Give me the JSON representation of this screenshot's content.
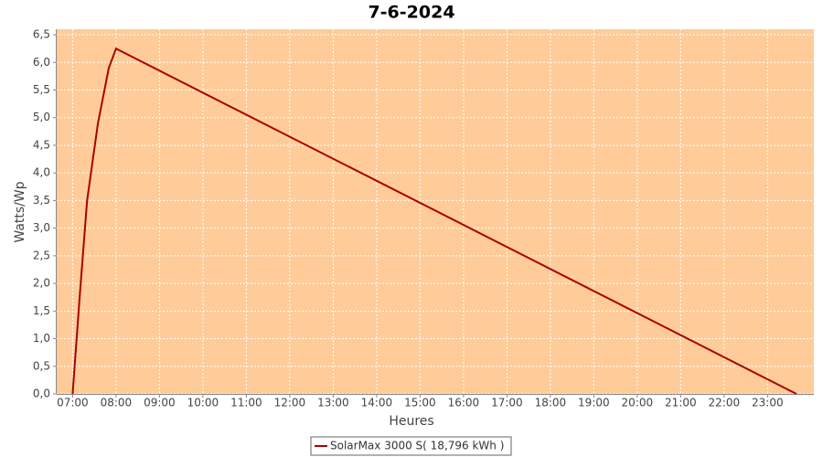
{
  "chart_data": {
    "type": "line",
    "title": "7-6-2024",
    "x_label": "Heures",
    "y_label": "Watts/Wp",
    "x": [
      "07:00",
      "07:10",
      "07:20",
      "07:35",
      "07:50",
      "08:00",
      "23:40"
    ],
    "series": [
      {
        "name": "SolarMax 3000 S( 18,796 kWh )",
        "color": "#aa0000",
        "values": [
          0,
          1.8,
          3.5,
          4.9,
          5.9,
          6.25,
          0
        ]
      }
    ],
    "xlim": [
      "06:38",
      "24:04"
    ],
    "xticks": [
      "07:00",
      "08:00",
      "09:00",
      "10:00",
      "11:00",
      "12:00",
      "13:00",
      "14:00",
      "15:00",
      "16:00",
      "17:00",
      "18:00",
      "19:00",
      "20:00",
      "21:00",
      "22:00",
      "23:00"
    ],
    "ylim": [
      0,
      6.6
    ],
    "yticks": [
      {
        "value": 0,
        "label": "0,0"
      },
      {
        "value": 0.5,
        "label": "0,5"
      },
      {
        "value": 1,
        "label": "1,0"
      },
      {
        "value": 1.5,
        "label": "1,5"
      },
      {
        "value": 2,
        "label": "2,0"
      },
      {
        "value": 2.5,
        "label": "2,5"
      },
      {
        "value": 3,
        "label": "3,0"
      },
      {
        "value": 3.5,
        "label": "3,5"
      },
      {
        "value": 4,
        "label": "4,0"
      },
      {
        "value": 4.5,
        "label": "4,5"
      },
      {
        "value": 5,
        "label": "5,0"
      },
      {
        "value": 5.5,
        "label": "5,5"
      },
      {
        "value": 6,
        "label": "6,0"
      },
      {
        "value": 6.5,
        "label": "6,5"
      }
    ],
    "grid": true,
    "plot_background": "#ffcc99",
    "legend": "bottom"
  }
}
